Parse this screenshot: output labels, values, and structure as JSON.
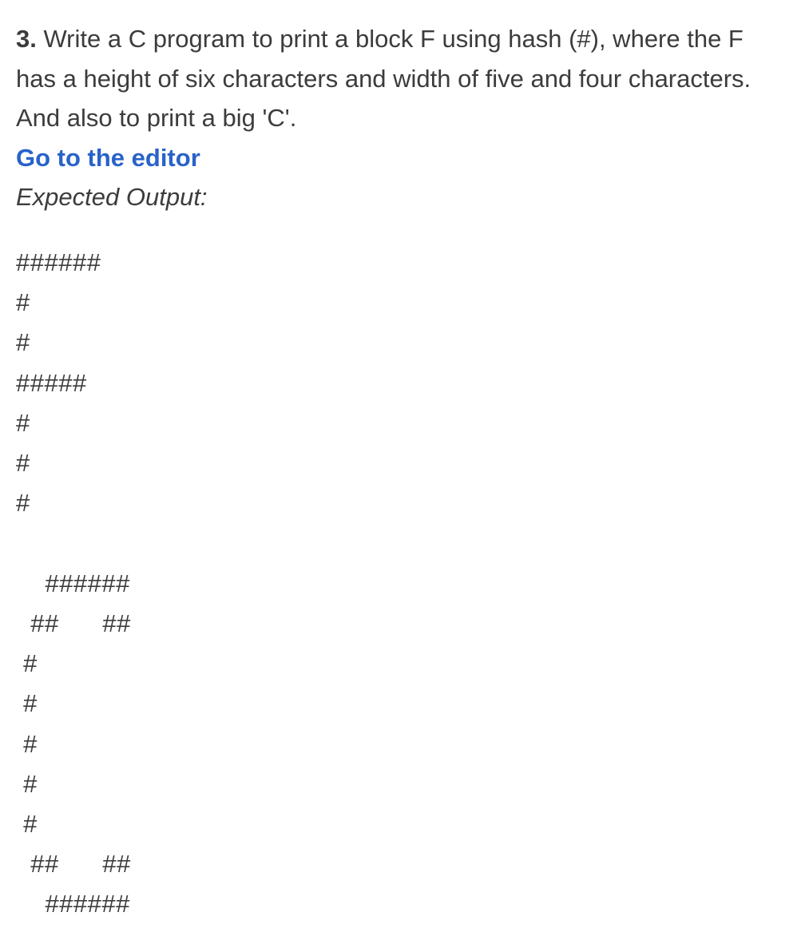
{
  "question": {
    "number": "3.",
    "text_part1": " Write a C program to print a block F using hash (#), where the F has a height of six characters and width of five and four characters. And also to print a big 'C'.",
    "editor_link": "Go to the editor",
    "expected_label": "Expected Output:",
    "output": "######\n#\n#\n#####\n#\n#\n#\n\n    ######\n  ##      ##\n #\n #\n #\n #\n #\n  ##      ##\n    ######"
  },
  "colors": {
    "text": "#3c3c3c",
    "link": "#2962c9",
    "background": "#ffffff"
  },
  "typography": {
    "body_fontsize": 31,
    "number_weight": 700,
    "link_weight": 700
  }
}
